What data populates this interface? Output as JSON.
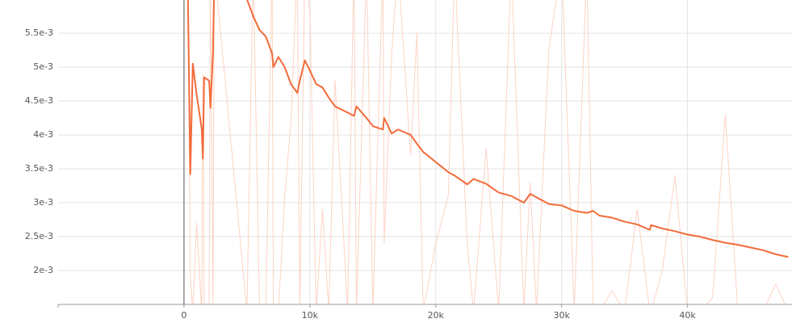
{
  "chart_data": {
    "type": "line",
    "x": [
      300,
      500,
      700,
      1000,
      1400,
      1500,
      1600,
      2000,
      2100,
      2300,
      2400,
      5000,
      5500,
      6000,
      6500,
      7000,
      7100,
      7500,
      8000,
      8500,
      9000,
      9200,
      9600,
      10000,
      10500,
      11000,
      11500,
      12000,
      13000,
      13500,
      13700,
      14500,
      15000,
      15800,
      15900,
      16500,
      17000,
      18000,
      18500,
      19000,
      20000,
      21000,
      21500,
      22500,
      23000,
      24000,
      25000,
      26000,
      27000,
      27500,
      28000,
      29000,
      30000,
      31000,
      32000,
      32500,
      33000,
      34000,
      35000,
      36000,
      37000,
      37100,
      38000,
      39000,
      40000,
      41000,
      42000,
      43000,
      44000,
      45000,
      46000,
      47000,
      48000
    ],
    "series": [
      {
        "color": "#fdd3c4",
        "values": [
          0.0065,
          0.0019,
          0.0014,
          0.0027,
          0.0014,
          0.0049,
          0.0014,
          0.0014,
          0.0065,
          0.0014,
          0.0065,
          0.0014,
          0.0065,
          0.0014,
          0.0014,
          0.0065,
          0.0014,
          0.0014,
          0.0031,
          0.0042,
          0.0065,
          0.0014,
          0.0065,
          0.0058,
          0.0014,
          0.0029,
          0.0014,
          0.0048,
          0.0014,
          0.0065,
          0.0014,
          0.0065,
          0.0014,
          0.0065,
          0.0024,
          0.0052,
          0.0065,
          0.0037,
          0.0055,
          0.0014,
          0.0024,
          0.0031,
          0.0065,
          0.0024,
          0.0014,
          0.0038,
          0.0014,
          0.0065,
          0.0014,
          0.0033,
          0.0014,
          0.0053,
          0.0065,
          0.0014,
          0.0065,
          0.0014,
          0.0014,
          0.0017,
          0.0014,
          0.0029,
          0.0014,
          0.0014,
          0.002,
          0.0034,
          0.0014,
          0.0014,
          0.0016,
          0.0043,
          0.0014,
          0.0014,
          0.0014,
          0.0018,
          0.0014
        ]
      },
      {
        "color": "#f26b3a",
        "values": [
          0.0062,
          0.00342,
          0.00505,
          0.0046,
          0.0041,
          0.00365,
          0.00485,
          0.0048,
          0.0044,
          0.0052,
          0.0062,
          0.006,
          0.00575,
          0.00555,
          0.00545,
          0.0052,
          0.005,
          0.00515,
          0.005,
          0.00475,
          0.00462,
          0.0048,
          0.0051,
          0.00495,
          0.00475,
          0.0047,
          0.00455,
          0.00442,
          0.00433,
          0.00428,
          0.00442,
          0.00425,
          0.00413,
          0.00408,
          0.00425,
          0.00402,
          0.00408,
          0.004,
          0.00387,
          0.00375,
          0.0036,
          0.00345,
          0.0034,
          0.00327,
          0.00335,
          0.00328,
          0.00315,
          0.0031,
          0.003,
          0.00313,
          0.00308,
          0.00298,
          0.00296,
          0.00288,
          0.00285,
          0.00288,
          0.00281,
          0.00278,
          0.00272,
          0.00268,
          0.0026,
          0.00267,
          0.00262,
          0.00258,
          0.00253,
          0.0025,
          0.00245,
          0.00241,
          0.00238,
          0.00234,
          0.0023,
          0.00224,
          0.0022
        ]
      }
    ],
    "xlim": [
      -10000,
      48300
    ],
    "ylim": [
      0.0015,
      0.00599
    ],
    "xticks": [
      0,
      {
        "value": 10000,
        "label": "10k"
      },
      {
        "value": 20000,
        "label": "20k"
      },
      {
        "value": 30000,
        "label": "30k"
      },
      {
        "value": 40000,
        "label": "40k"
      }
    ],
    "yticks": [
      {
        "value": 0.002,
        "label": "2e-3"
      },
      {
        "value": 0.0025,
        "label": "2.5e-3"
      },
      {
        "value": 0.003,
        "label": "3e-3"
      },
      {
        "value": 0.0035,
        "label": "3.5e-3"
      },
      {
        "value": 0.004,
        "label": "4e-3"
      },
      {
        "value": 0.0045,
        "label": "4.5e-3"
      },
      {
        "value": 0.005,
        "label": "5e-3"
      },
      {
        "value": 0.0055,
        "label": "5.5e-3"
      }
    ],
    "grid": true
  }
}
